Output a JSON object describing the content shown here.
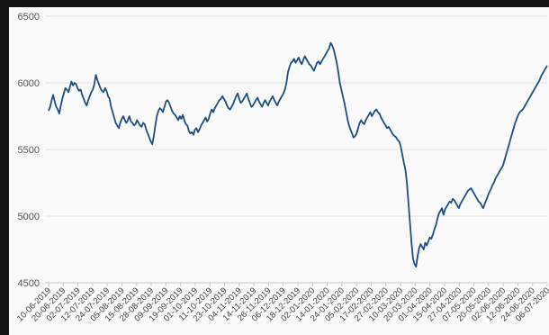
{
  "chart_data": {
    "type": "line",
    "title": "",
    "xlabel": "",
    "ylabel": "",
    "ylim": [
      4500,
      6500
    ],
    "yticks": [
      4500,
      5000,
      5500,
      6000,
      6500
    ],
    "grid": true,
    "line_color": "#1e4e82",
    "x_tick_labels": [
      "10-06-2019",
      "20-06-2019",
      "02-07-2019",
      "12-07-2019",
      "24-07-2019",
      "05-08-2019",
      "15-08-2019",
      "28-08-2019",
      "09-09-2019",
      "19-09-2019",
      "01-10-2019",
      "11-10-2019",
      "23-10-2019",
      "04-11-2019",
      "14-11-2019",
      "26-11-2019",
      "06-12-2019",
      "18-12-2019",
      "02-01-2020",
      "14-01-2020",
      "24-01-2020",
      "05-02-2020",
      "17-02-2020",
      "27-02-2020",
      "10-03-2020",
      "20-03-2020",
      "01-04-2020",
      "15-04-2020",
      "27-04-2020",
      "07-05-2020",
      "20-05-2020",
      "02-06-2020",
      "12-06-2020",
      "24-06-2020",
      "06-07-2020"
    ],
    "series": [
      {
        "values": [
          5790,
          5820,
          5870,
          5910,
          5860,
          5820,
          5800,
          5770,
          5830,
          5880,
          5920,
          5960,
          5950,
          5930,
          5970,
          6010,
          5980,
          6000,
          5990,
          5960,
          5940,
          5950,
          5910,
          5880,
          5850,
          5830,
          5870,
          5900,
          5930,
          5950,
          5990,
          6060,
          6020,
          5990,
          5960,
          5940,
          5930,
          5960,
          5940,
          5900,
          5880,
          5820,
          5780,
          5740,
          5700,
          5680,
          5660,
          5700,
          5730,
          5750,
          5720,
          5700,
          5720,
          5750,
          5710,
          5700,
          5680,
          5690,
          5720,
          5700,
          5680,
          5670,
          5700,
          5690,
          5650,
          5620,
          5590,
          5560,
          5540,
          5600,
          5680,
          5750,
          5790,
          5810,
          5800,
          5780,
          5820,
          5860,
          5870,
          5850,
          5820,
          5790,
          5770,
          5760,
          5740,
          5720,
          5750,
          5730,
          5760,
          5720,
          5690,
          5680,
          5640,
          5620,
          5630,
          5610,
          5650,
          5660,
          5630,
          5650,
          5680,
          5700,
          5720,
          5740,
          5710,
          5730,
          5770,
          5800,
          5780,
          5810,
          5830,
          5850,
          5870,
          5880,
          5900,
          5880,
          5860,
          5830,
          5810,
          5800,
          5820,
          5840,
          5870,
          5900,
          5920,
          5880,
          5850,
          5860,
          5880,
          5900,
          5920,
          5880,
          5850,
          5820,
          5830,
          5850,
          5870,
          5890,
          5860,
          5840,
          5820,
          5850,
          5870,
          5850,
          5830,
          5860,
          5880,
          5900,
          5870,
          5850,
          5830,
          5860,
          5880,
          5900,
          5920,
          5950,
          6000,
          6080,
          6120,
          6150,
          6160,
          6180,
          6150,
          6170,
          6190,
          6160,
          6140,
          6170,
          6200,
          6180,
          6160,
          6140,
          6130,
          6110,
          6090,
          6120,
          6150,
          6160,
          6140,
          6160,
          6180,
          6200,
          6220,
          6240,
          6260,
          6300,
          6280,
          6250,
          6200,
          6150,
          6080,
          6000,
          5950,
          5900,
          5850,
          5790,
          5730,
          5680,
          5650,
          5620,
          5590,
          5600,
          5620,
          5660,
          5700,
          5720,
          5700,
          5690,
          5720,
          5740,
          5760,
          5780,
          5750,
          5770,
          5790,
          5800,
          5780,
          5770,
          5740,
          5720,
          5700,
          5680,
          5660,
          5670,
          5650,
          5630,
          5610,
          5600,
          5590,
          5570,
          5560,
          5520,
          5460,
          5400,
          5350,
          5250,
          5100,
          4950,
          4800,
          4680,
          4640,
          4620,
          4700,
          4760,
          4790,
          4770,
          4750,
          4800,
          4780,
          4810,
          4840,
          4830,
          4860,
          4900,
          4930,
          4980,
          5020,
          5040,
          5060,
          5010,
          5050,
          5070,
          5090,
          5110,
          5100,
          5130,
          5120,
          5100,
          5080,
          5060,
          5090,
          5110,
          5130,
          5150,
          5170,
          5190,
          5200,
          5210,
          5190,
          5170,
          5150,
          5130,
          5110,
          5100,
          5080,
          5060,
          5090,
          5120,
          5150,
          5180,
          5200,
          5230,
          5250,
          5280,
          5300,
          5320,
          5340,
          5360,
          5380,
          5420,
          5460,
          5500,
          5540,
          5580,
          5620,
          5660,
          5700,
          5730,
          5760,
          5780,
          5790,
          5800,
          5820,
          5840,
          5860,
          5880,
          5900,
          5920,
          5940,
          5960,
          5980,
          6000,
          6020,
          6050,
          6070,
          6090,
          6110,
          6130
        ]
      }
    ]
  }
}
